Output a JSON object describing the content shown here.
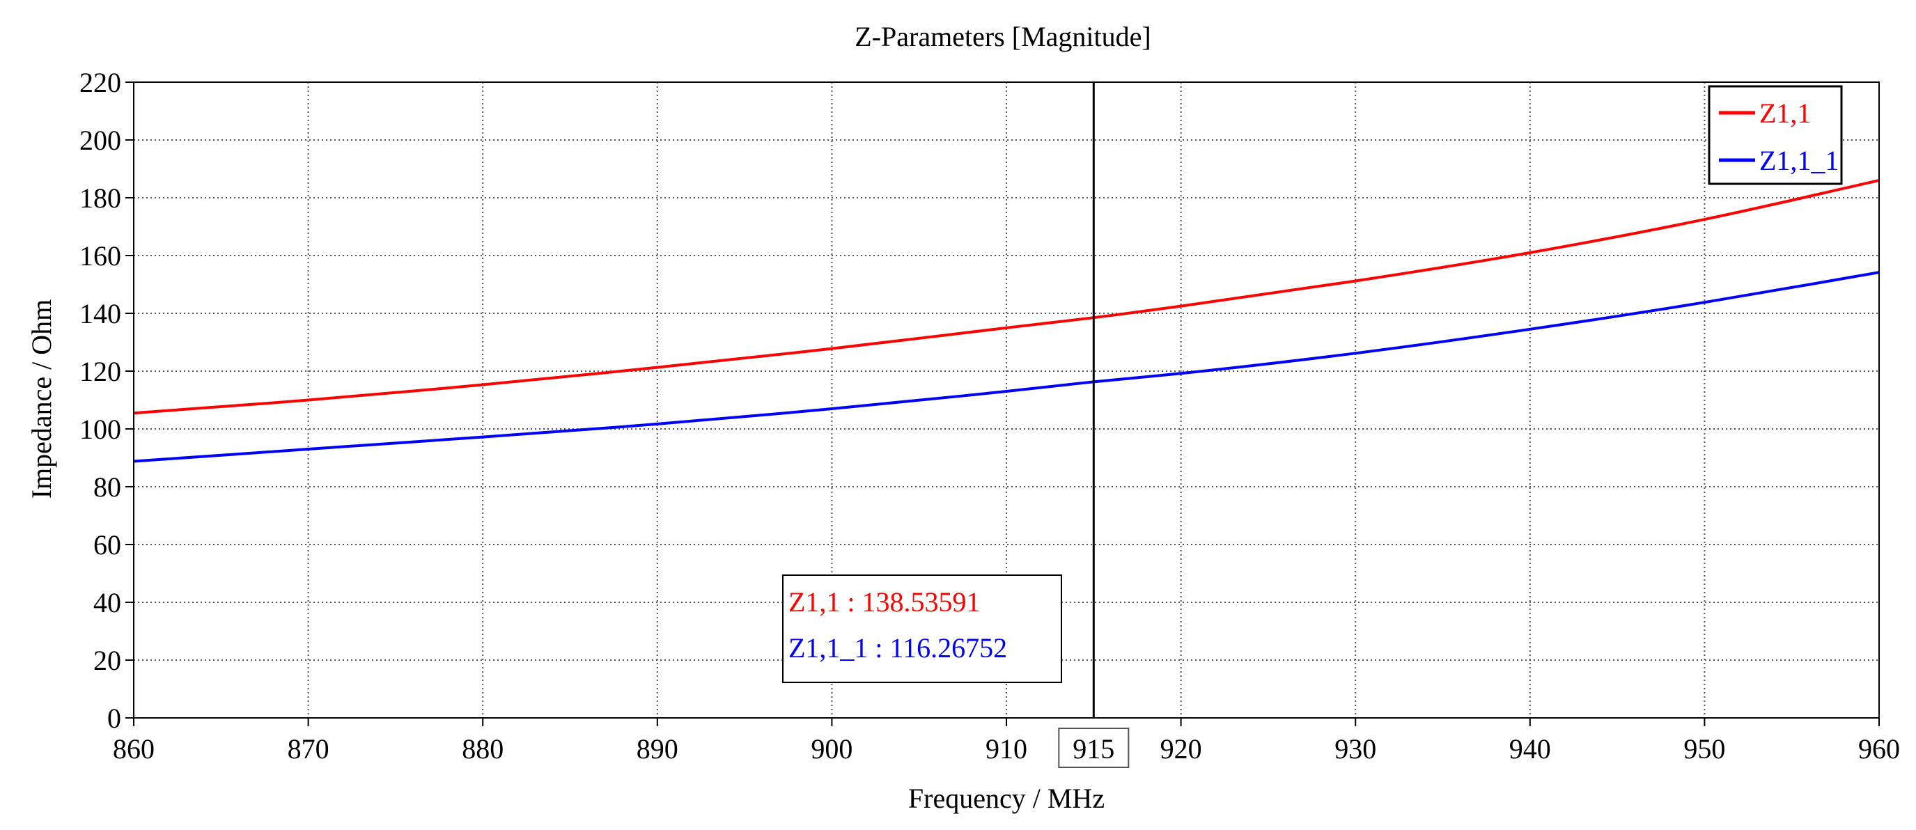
{
  "chart_data": {
    "type": "line",
    "title": "Z-Parameters [Magnitude]",
    "xlabel": "Frequency / MHz",
    "ylabel": "Impedance / Ohm",
    "xlim": [
      860,
      960
    ],
    "ylim": [
      0,
      220
    ],
    "xticks": [
      "860",
      "870",
      "880",
      "890",
      "900",
      "910",
      "920",
      "930",
      "940",
      "950",
      "960"
    ],
    "yticks": [
      "0",
      "20",
      "40",
      "60",
      "80",
      "100",
      "120",
      "140",
      "160",
      "180",
      "200",
      "220"
    ],
    "grid": true,
    "legend_position": "top-right",
    "x": [
      860,
      870,
      880,
      890,
      900,
      910,
      915,
      920,
      930,
      940,
      950,
      960
    ],
    "series": [
      {
        "name": "Z1,1",
        "color": "#ff0000",
        "values": [
          105.5,
          110.0,
          115.3,
          121.3,
          127.8,
          135.0,
          138.5,
          142.5,
          151.2,
          161.0,
          172.5,
          186.0
        ]
      },
      {
        "name": "Z1,1_1",
        "color": "#0000ff",
        "values": [
          88.8,
          93.0,
          97.2,
          101.7,
          107.0,
          113.0,
          116.3,
          119.2,
          126.2,
          134.5,
          143.8,
          154.2
        ]
      }
    ],
    "marker": {
      "x_value": 915,
      "x_label": "915",
      "readouts": [
        {
          "series": "Z1,1",
          "text": "Z1,1 : 138.53591",
          "color": "#ff0000"
        },
        {
          "series": "Z1,1_1",
          "text": "Z1,1_1 : 116.26752",
          "color": "#0000ff"
        }
      ]
    }
  }
}
